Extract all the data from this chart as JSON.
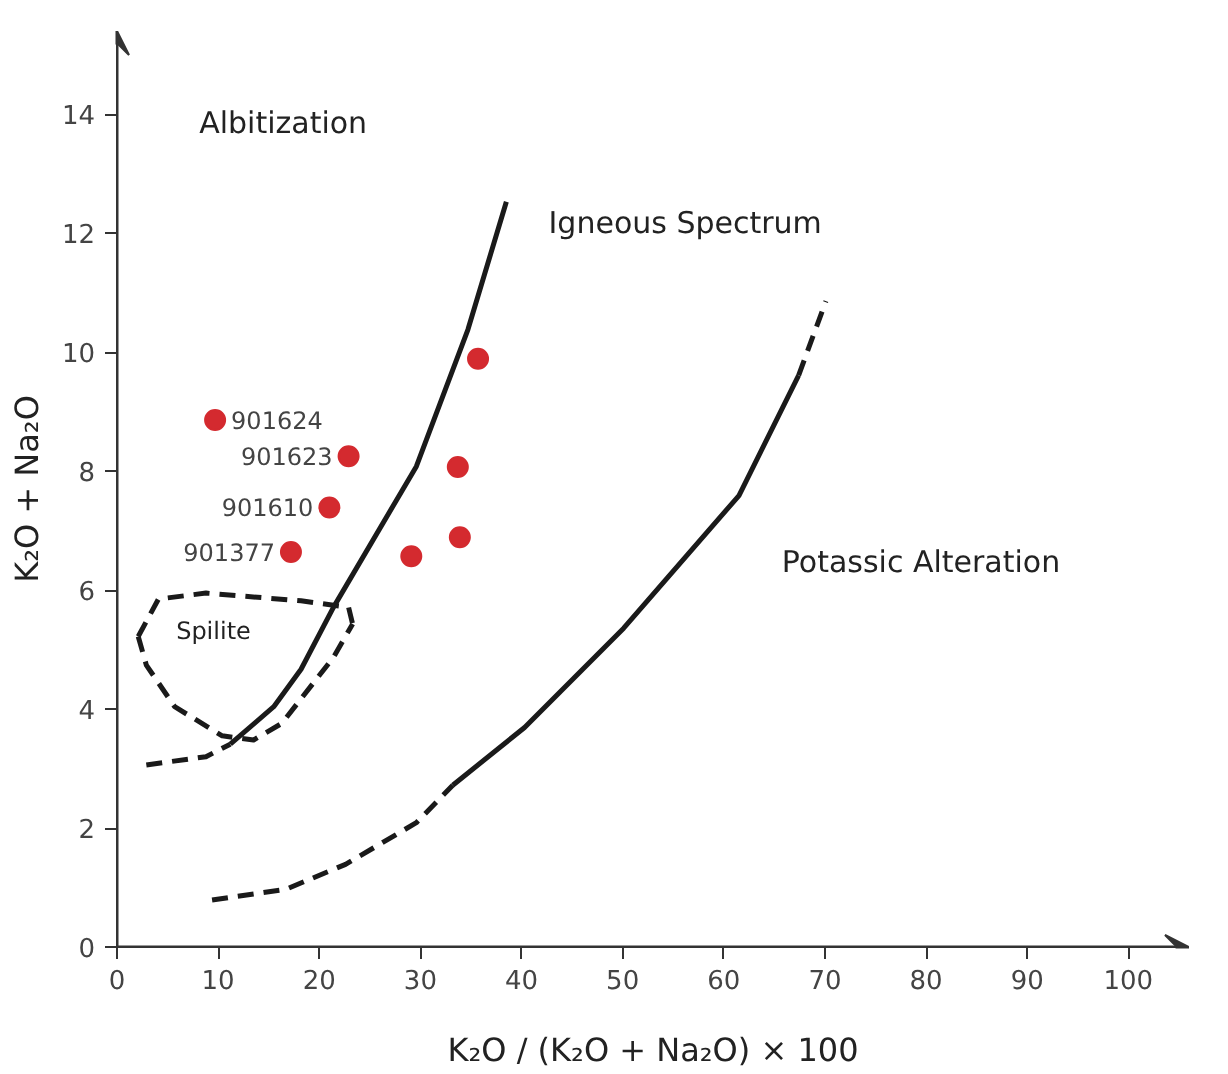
{
  "chart_data": {
    "type": "scatter",
    "xlabel": "K₂O / (K₂O + Na₂O) × 100",
    "ylabel": "K₂O + Na₂O",
    "xlim": [
      0,
      106
    ],
    "ylim": [
      0,
      15.4
    ],
    "xticks": [
      0,
      10,
      20,
      30,
      40,
      50,
      60,
      70,
      80,
      90,
      100
    ],
    "yticks": [
      0,
      2,
      4,
      6,
      8,
      10,
      12,
      14
    ],
    "series": [
      {
        "marker": "circle",
        "color": "#d42a2f",
        "x": [
          9.7,
          22.9,
          21.0,
          17.2,
          35.7,
          33.7,
          33.9,
          29.1
        ],
        "values": [
          8.86,
          8.25,
          7.39,
          6.64,
          9.89,
          8.07,
          6.89,
          6.57
        ]
      },
      {
        "type": "line",
        "color": "#1a1a1a",
        "line_style": "dashed",
        "x": [
          2.9,
          8.8,
          11.2
        ],
        "values": [
          3.06,
          3.2,
          3.41
        ]
      },
      {
        "type": "line",
        "color": "#1a1a1a",
        "line_style": "solid",
        "x": [
          11.2,
          15.5,
          18.2,
          21.4,
          29.6,
          34.7,
          38.5
        ],
        "values": [
          3.41,
          4.04,
          4.67,
          5.71,
          8.08,
          10.38,
          12.53
        ]
      },
      {
        "type": "line",
        "color": "#1a1a1a",
        "line_style": "dashed",
        "x": [
          9.4,
          16.7,
          22.6,
          29.6,
          33.2
        ],
        "values": [
          0.79,
          0.97,
          1.39,
          2.09,
          2.72
        ]
      },
      {
        "type": "line",
        "color": "#1a1a1a",
        "line_style": "solid",
        "x": [
          33.2,
          40.3,
          50.1,
          61.5,
          67.4
        ],
        "values": [
          2.72,
          3.69,
          5.36,
          7.59,
          9.61
        ]
      },
      {
        "type": "line",
        "color": "#1a1a1a",
        "line_style": "dashed",
        "x": [
          67.4,
          70.1
        ],
        "values": [
          9.61,
          10.86
        ]
      },
      {
        "type": "line",
        "color": "#1a1a1a",
        "line_style": "dashed",
        "x": [
          2.1,
          4.1,
          8.8,
          18.2,
          22.9,
          23.3
        ],
        "values": [
          5.22,
          5.85,
          5.95,
          5.82,
          5.71,
          5.43
        ]
      },
      {
        "type": "line",
        "color": "#1a1a1a",
        "line_style": "dashed",
        "x": [
          2.1,
          2.9,
          5.7,
          10.4,
          13.5,
          16.3,
          21.4,
          23.3
        ],
        "values": [
          5.22,
          4.74,
          4.04,
          3.55,
          3.48,
          3.76,
          4.87,
          5.43
        ]
      }
    ],
    "annotations": [
      {
        "text": "901624",
        "x": 9.7,
        "y": 8.86
      },
      {
        "text": "901623",
        "x": 22.9,
        "y": 8.25
      },
      {
        "text": "901610",
        "x": 21.0,
        "y": 7.39
      },
      {
        "text": "901377",
        "x": 17.2,
        "y": 6.64
      },
      "Spilite",
      "Albitization",
      "Igneous Spectrum",
      "Potassic Alteration"
    ]
  }
}
